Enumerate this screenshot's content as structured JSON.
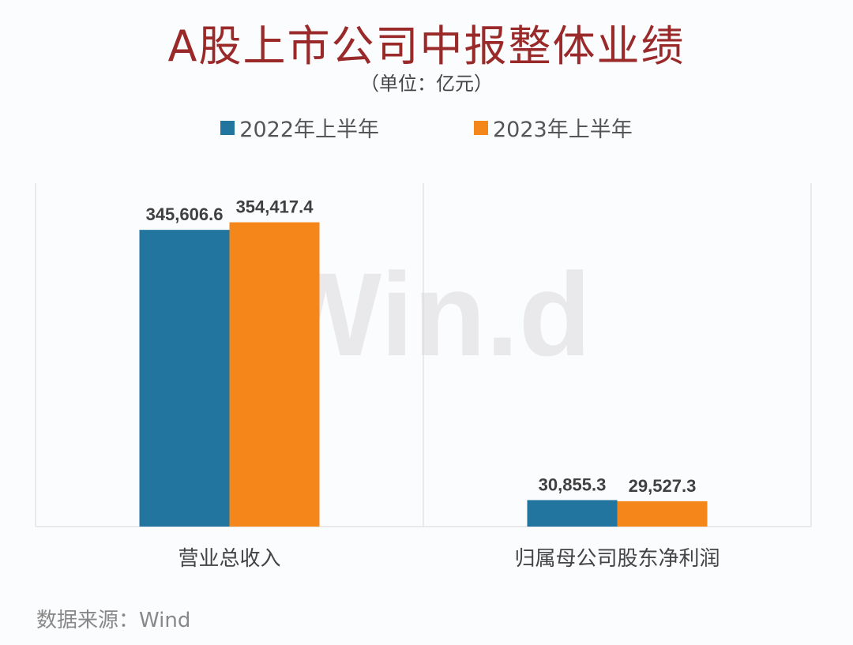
{
  "chart_data": {
    "type": "bar",
    "title": "A股上市公司中报整体业绩",
    "subtitle": "（单位：亿元）",
    "categories": [
      "营业总收入",
      "归属母公司股东净利润"
    ],
    "series": [
      {
        "name": "2022年上半年",
        "values": [
          345606.6,
          30855.3
        ],
        "labels": [
          "345,606.6",
          "30,855.3"
        ],
        "color": "#21759f"
      },
      {
        "name": "2023年上半年",
        "values": [
          354417.4,
          29527.3
        ],
        "labels": [
          "354,417.4",
          "29,527.3"
        ],
        "color": "#f5861a"
      }
    ],
    "ylim": [
      0,
      400000
    ],
    "grid": "vertical category separators",
    "legend": "top-center",
    "title_color": "#9a2a2a"
  },
  "source": "数据来源：Wind",
  "watermark": "Win.d"
}
